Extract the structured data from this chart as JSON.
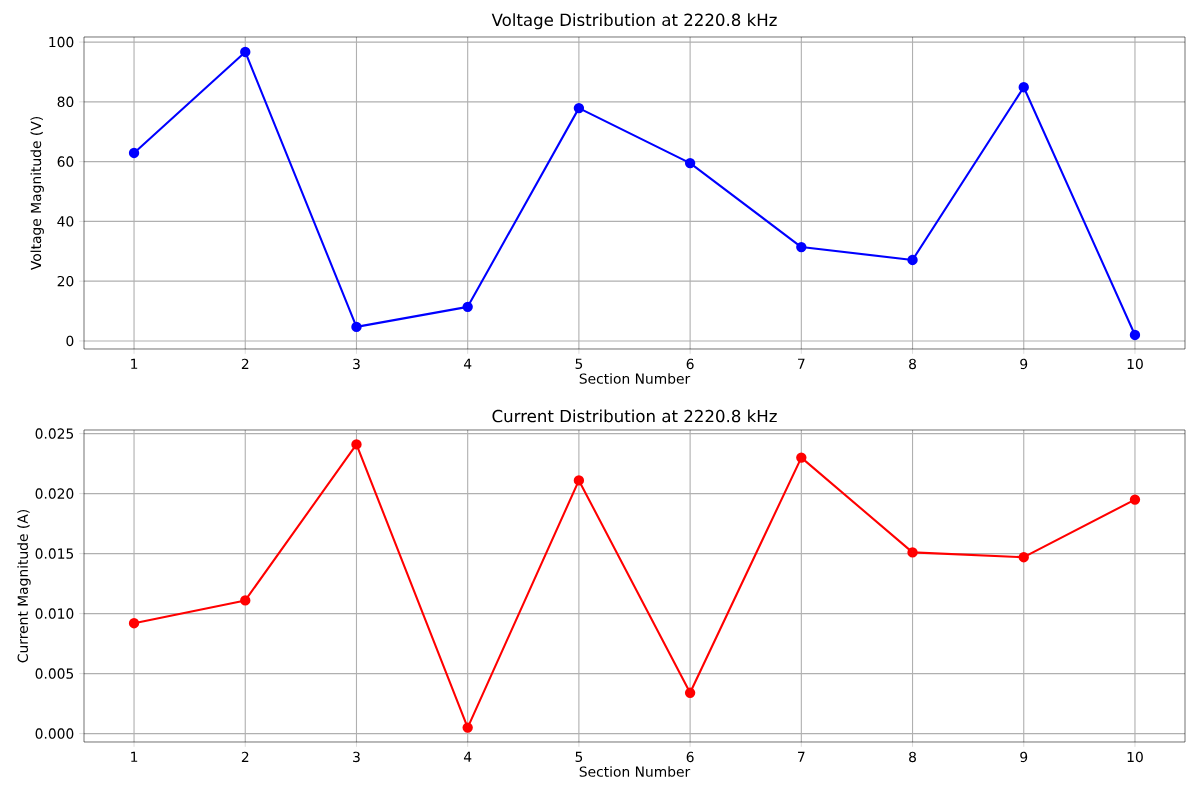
{
  "chart_data": [
    {
      "type": "line",
      "title": "Voltage Distribution at 2220.8 kHz",
      "xlabel": "Section Number",
      "ylabel": "Voltage Magnitude (V)",
      "x": [
        1,
        2,
        3,
        4,
        5,
        6,
        7,
        8,
        9,
        10
      ],
      "series": [
        {
          "color": "#0000ff",
          "values": [
            62.9,
            96.7,
            4.7,
            11.4,
            77.9,
            59.5,
            31.4,
            27.1,
            84.9,
            2.0
          ]
        }
      ],
      "xlim": [
        0.55,
        10.45
      ],
      "xticks": [
        1,
        2,
        3,
        4,
        5,
        6,
        7,
        8,
        9,
        10
      ],
      "ylim": [
        -2.7,
        101.7
      ],
      "yticks": [
        0,
        20,
        40,
        60,
        80,
        100
      ],
      "grid": true,
      "marker": "circle",
      "line_style": "solid"
    },
    {
      "type": "line",
      "title": "Current Distribution at 2220.8 kHz",
      "xlabel": "Section Number",
      "ylabel": "Current Magnitude (A)",
      "x": [
        1,
        2,
        3,
        4,
        5,
        6,
        7,
        8,
        9,
        10
      ],
      "series": [
        {
          "color": "#ff0000",
          "values": [
            0.0092,
            0.0111,
            0.0241,
            0.0005,
            0.0211,
            0.0034,
            0.023,
            0.0151,
            0.0147,
            0.0195
          ]
        }
      ],
      "xlim": [
        0.55,
        10.45
      ],
      "xticks": [
        1,
        2,
        3,
        4,
        5,
        6,
        7,
        8,
        9,
        10
      ],
      "ylim": [
        -0.0007,
        0.0253
      ],
      "yticks": [
        {
          "value": 0,
          "label": "0.000"
        },
        {
          "value": 0.005,
          "label": "0.005"
        },
        {
          "value": 0.01,
          "label": "0.010"
        },
        {
          "value": 0.015,
          "label": "0.015"
        },
        {
          "value": 0.02,
          "label": "0.020"
        },
        {
          "value": 0.025,
          "label": "0.025"
        }
      ],
      "grid": true,
      "marker": "circle",
      "line_style": "solid"
    }
  ]
}
